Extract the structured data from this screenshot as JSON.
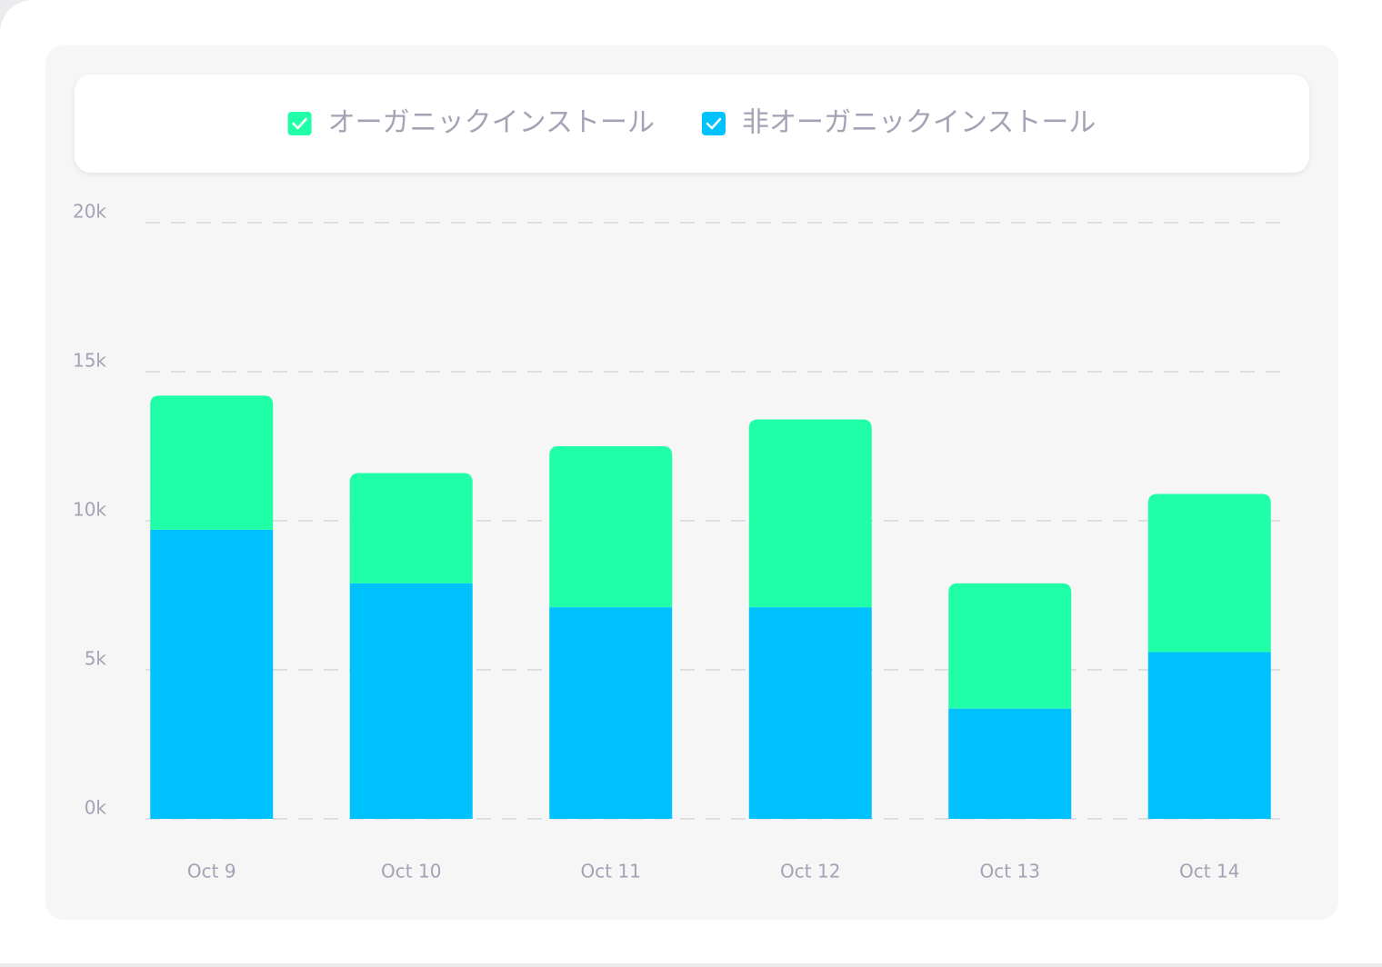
{
  "chart_data": {
    "type": "stacked_bar",
    "categories": [
      "Oct 9",
      "Oct 10",
      "Oct 11",
      "Oct 12",
      "Oct 13",
      "Oct 14"
    ],
    "series": [
      {
        "name": "オーガニックインストール",
        "color": "#20ffa8",
        "values": [
          4500,
          3700,
          5400,
          6300,
          4200,
          5300
        ]
      },
      {
        "name": "非オーガニックインストール",
        "color": "#00c2ff",
        "values": [
          9700,
          7900,
          7100,
          7100,
          3700,
          5600
        ]
      }
    ],
    "ylim": [
      0,
      20000
    ],
    "yticks": [
      {
        "value": 0,
        "label": "0k"
      },
      {
        "value": 5000,
        "label": "5k"
      },
      {
        "value": 10000,
        "label": "10k"
      },
      {
        "value": 15000,
        "label": "15k"
      },
      {
        "value": 20000,
        "label": "20k"
      }
    ],
    "grid": true
  }
}
